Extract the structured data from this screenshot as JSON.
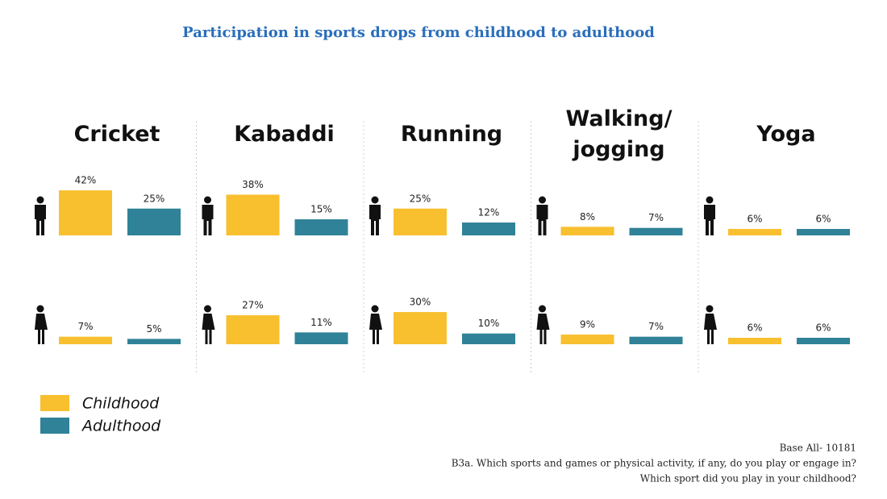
{
  "chart_data": {
    "type": "bar",
    "title": "Participation in sports drops from childhood to adulthood",
    "categories": [
      "Cricket",
      "Kabaddi",
      "Running",
      "Walking/ jogging",
      "Yoga"
    ],
    "legend": [
      {
        "name": "Childhood",
        "color": "#f8bf2e"
      },
      {
        "name": "Adulthood",
        "color": "#2f8297"
      }
    ],
    "rows": [
      [
        {
          "values": [
            42,
            38,
            25,
            8,
            6
          ],
          "value_labels": [
            "42%",
            "38%",
            "25%",
            "8%",
            "6%"
          ]
        },
        {
          "values": [
            25,
            15,
            12,
            7,
            6
          ],
          "value_labels": [
            "25%",
            "15%",
            "12%",
            "7%",
            "6%"
          ]
        }
      ],
      [
        {
          "values": [
            7,
            27,
            30,
            9,
            6
          ],
          "value_labels": [
            "7%",
            "27%",
            "30%",
            "9%",
            "6%"
          ]
        },
        {
          "values": [
            5,
            11,
            10,
            7,
            6
          ],
          "value_labels": [
            "5%",
            "11%",
            "10%",
            "7%",
            "6%"
          ]
        }
      ]
    ],
    "notes": [
      "Base All- 10181",
      "B3a. Which sports and games or physical activity, if any, do you play or engage in?",
      "Which sport did you play in your childhood?"
    ]
  }
}
